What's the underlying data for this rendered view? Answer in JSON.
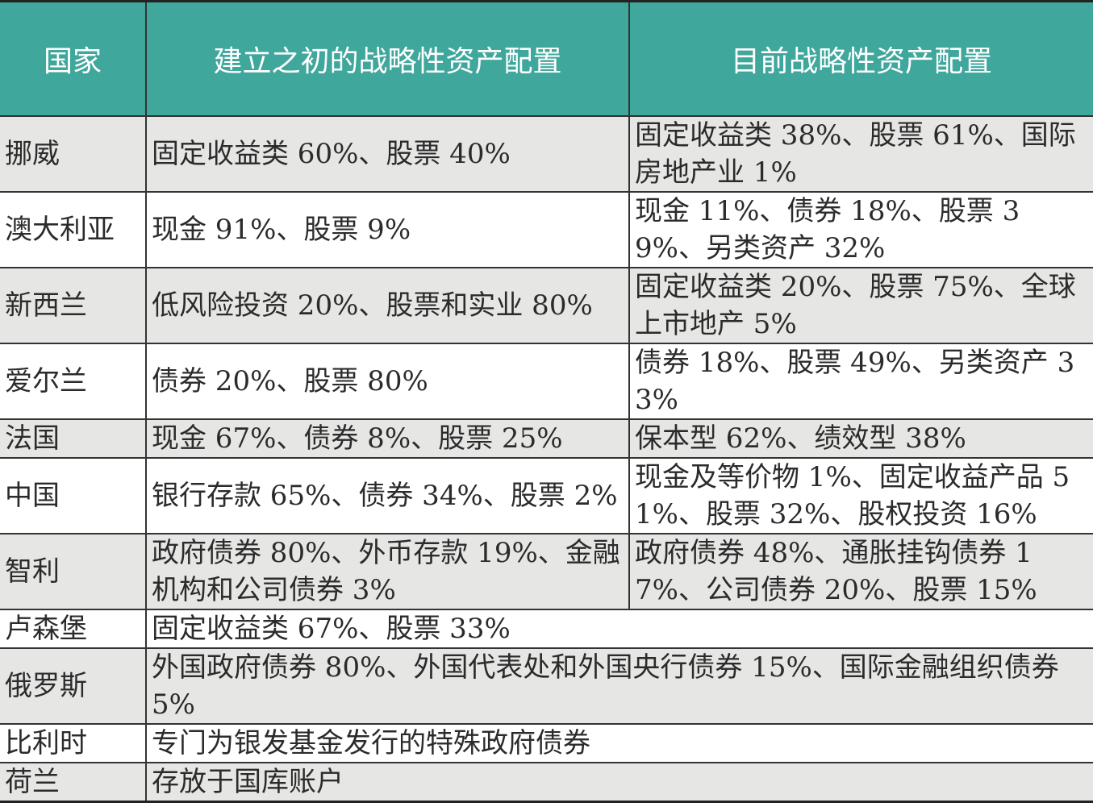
{
  "header": {
    "country": "国家",
    "initial": "建立之初的战略性资产配置",
    "current": "目前战略性资产配置"
  },
  "rows": [
    {
      "country": "挪威",
      "initial": "固定收益类 60%、股票 40%",
      "current": "固定收益类 38%、股票 61%、国际房地产业 1%"
    },
    {
      "country": "澳大利亚",
      "initial": "现金 91%、股票 9%",
      "current": "现金 11%、债券 18%、股票 39%、另类资产 32%"
    },
    {
      "country": "新西兰",
      "initial": "低风险投资 20%、股票和实业 80%",
      "current": "固定收益类 20%、股票 75%、全球上市地产 5%"
    },
    {
      "country": "爱尔兰",
      "initial": "债券 20%、股票 80%",
      "current": "债券 18%、股票 49%、另类资产 33%"
    },
    {
      "country": "法国",
      "initial": "现金 67%、债券 8%、股票 25%",
      "current": "保本型 62%、绩效型 38%"
    },
    {
      "country": "中国",
      "initial": "银行存款 65%、债券 34%、股票 2%",
      "current": "现金及等价物 1%、固定收益产品 51%、股票 32%、股权投资 16%"
    },
    {
      "country": "智利",
      "initial": "政府债券 80%、外币存款 19%、金融机构和公司债券 3%",
      "current": "政府债券 48%、通胀挂钩债券 17%、公司债券 20%、股票 15%"
    },
    {
      "country": "卢森堡",
      "merged": "固定收益类 67%、股票 33%"
    },
    {
      "country": "俄罗斯",
      "merged": "外国政府债券 80%、外国代表处和外国央行债券 15%、国际金融组织债券 5%"
    },
    {
      "country": "比利时",
      "merged": "专门为银发基金发行的特殊政府债券"
    },
    {
      "country": "荷兰",
      "merged": "存放于国库账户"
    }
  ]
}
